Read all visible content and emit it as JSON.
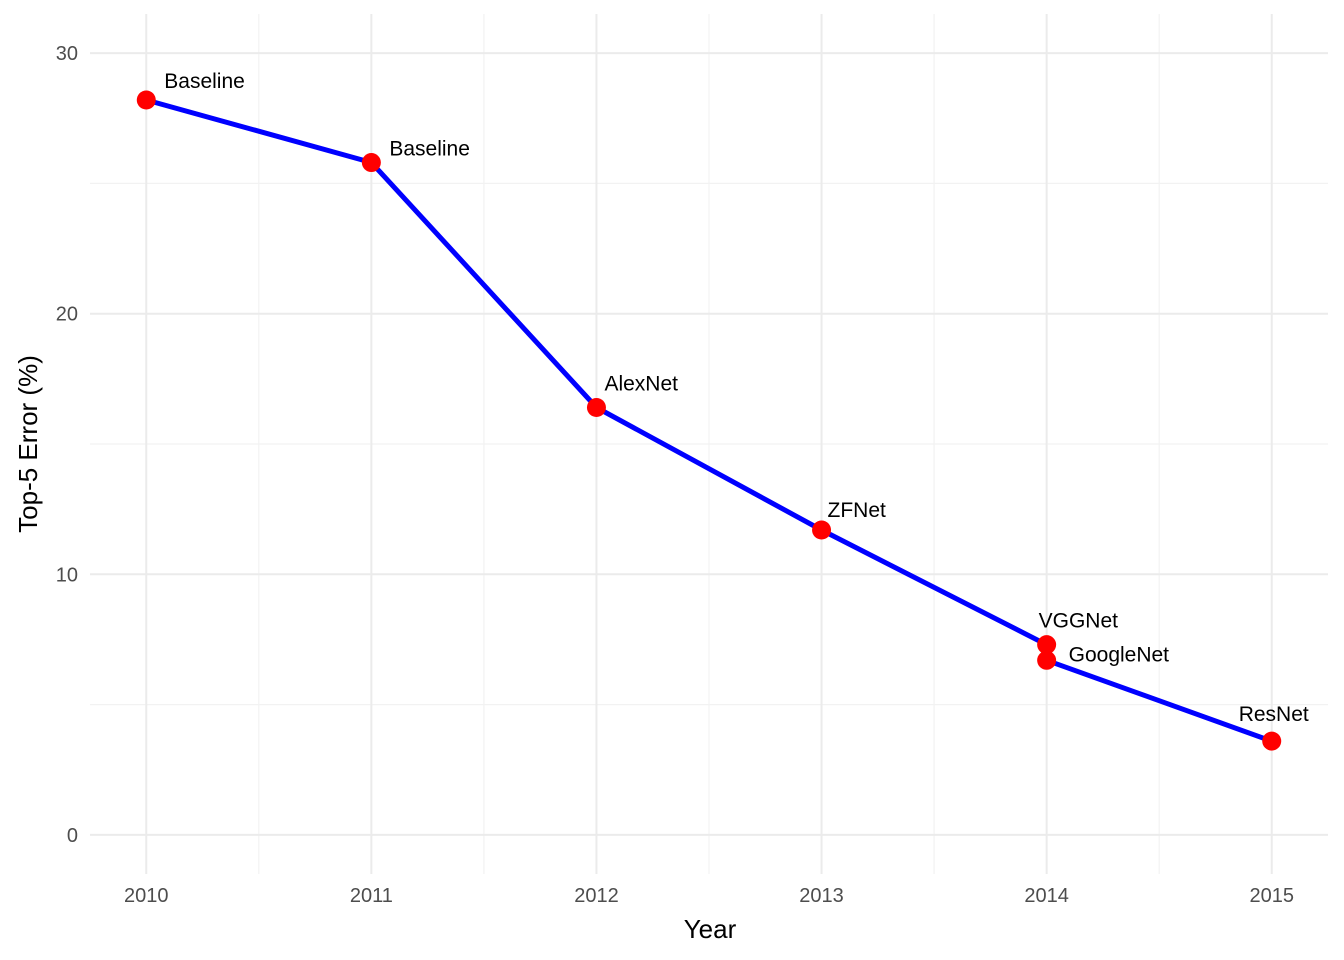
{
  "chart_data": {
    "type": "line",
    "title": "",
    "xlabel": "Year",
    "ylabel": "Top-5 Error (%)",
    "xlim": [
      2009.75,
      2015.25
    ],
    "ylim": [
      -1.5,
      31.5
    ],
    "x_ticks": [
      2010,
      2011,
      2012,
      2013,
      2014,
      2015
    ],
    "y_ticks": [
      0,
      10,
      20,
      30
    ],
    "grid": true,
    "legend": "none",
    "colors": {
      "line": "#0000ff",
      "points": "#ff0000"
    },
    "series": [
      {
        "points": [
          {
            "x": 2010,
            "y": 28.2,
            "label": "Baseline"
          },
          {
            "x": 2011,
            "y": 25.8,
            "label": "Baseline"
          },
          {
            "x": 2012,
            "y": 16.4,
            "label": "AlexNet"
          },
          {
            "x": 2013,
            "y": 11.7,
            "label": "ZFNet"
          },
          {
            "x": 2014,
            "y": 7.3,
            "label": "VGGNet"
          },
          {
            "x": 2014,
            "y": 6.7,
            "label": "GoogleNet"
          },
          {
            "x": 2015,
            "y": 3.6,
            "label": "ResNet"
          }
        ]
      }
    ]
  }
}
